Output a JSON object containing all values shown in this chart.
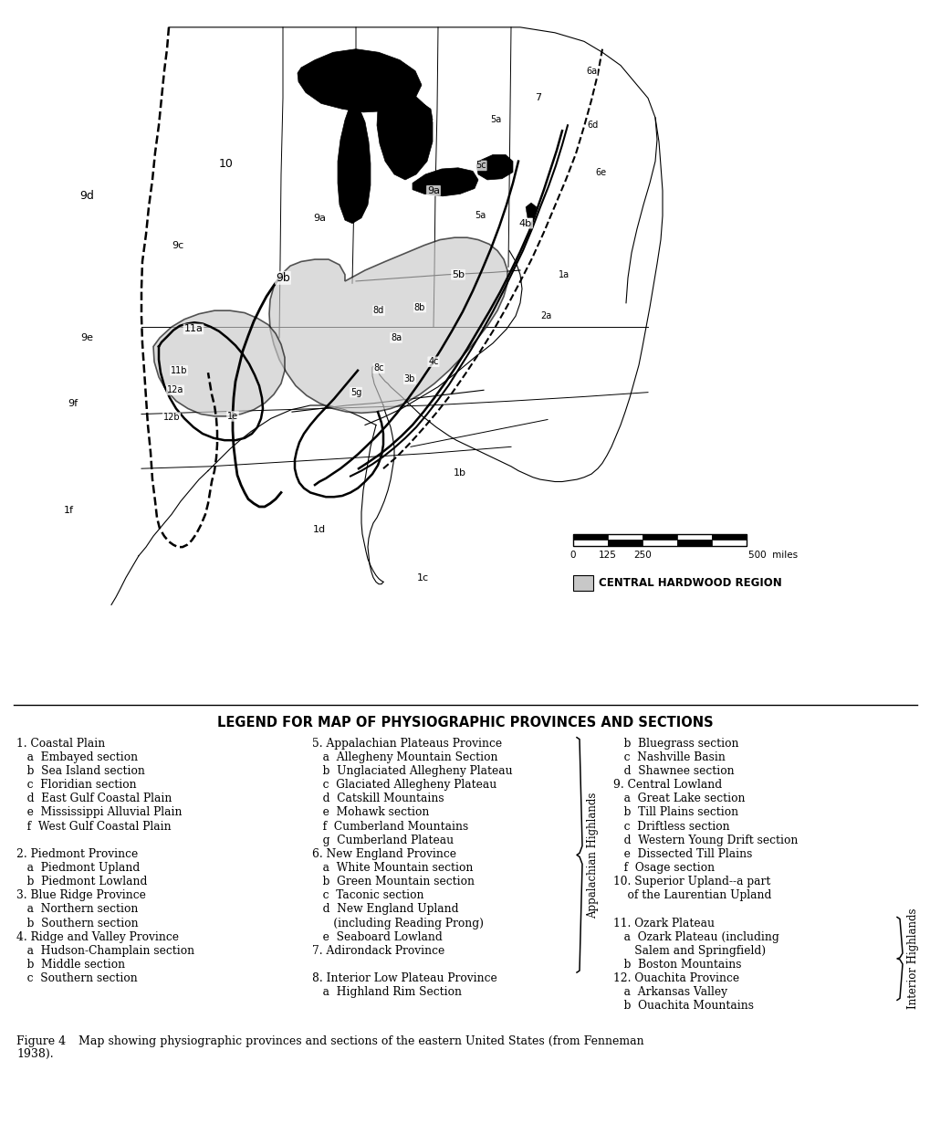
{
  "legend_title": "LEGEND FOR MAP OF PHYSIOGRAPHIC PROVINCES AND SECTIONS",
  "hardwood_region_label": "CENTRAL HARDWOOD REGION",
  "caption_label": "Figure 4",
  "caption_text": "    Map showing physiographic provinces and sections of the eastern United States (from Fenneman",
  "caption_text2": "1938).",
  "col1": [
    [
      "1. Coastal Plain",
      false
    ],
    [
      "   a  Embayed section",
      false
    ],
    [
      "   b  Sea Island section",
      false
    ],
    [
      "   c  Floridian section",
      false
    ],
    [
      "   d  East Gulf Coastal Plain",
      false
    ],
    [
      "   e  Mississippi Alluvial Plain",
      false
    ],
    [
      "   f  West Gulf Coastal Plain",
      false
    ],
    [
      "",
      false
    ],
    [
      "2. Piedmont Province",
      false
    ],
    [
      "   a  Piedmont Upland",
      false
    ],
    [
      "   b  Piedmont Lowland",
      false
    ],
    [
      "3. Blue Ridge Province",
      false
    ],
    [
      "   a  Northern section",
      false
    ],
    [
      "   b  Southern section",
      false
    ],
    [
      "4. Ridge and Valley Province",
      false
    ],
    [
      "   a  Hudson-Champlain section",
      false
    ],
    [
      "   b  Middle section",
      false
    ],
    [
      "   c  Southern section",
      false
    ]
  ],
  "col2": [
    [
      "5. Appalachian Plateaus Province",
      false
    ],
    [
      "   a  Allegheny Mountain Section",
      false
    ],
    [
      "   b  Unglaciated Allegheny Plateau",
      false
    ],
    [
      "   c  Glaciated Allegheny Plateau",
      false
    ],
    [
      "   d  Catskill Mountains",
      false
    ],
    [
      "   e  Mohawk section",
      false
    ],
    [
      "   f  Cumberland Mountains",
      false
    ],
    [
      "   g  Cumberland Plateau",
      false
    ],
    [
      "6. New England Province",
      false
    ],
    [
      "   a  White Mountain section",
      false
    ],
    [
      "   b  Green Mountain section",
      false
    ],
    [
      "   c  Taconic section",
      false
    ],
    [
      "   d  New England Upland",
      false
    ],
    [
      "      (including Reading Prong)",
      false
    ],
    [
      "   e  Seaboard Lowland",
      false
    ],
    [
      "7. Adirondack Province",
      false
    ],
    [
      "",
      false
    ],
    [
      "8. Interior Low Plateau Province",
      false
    ],
    [
      "   a  Highland Rim Section",
      false
    ]
  ],
  "col2_brace": "Appalachian Highlands",
  "col3": [
    [
      "   b  Bluegrass section",
      false
    ],
    [
      "   c  Nashville Basin",
      false
    ],
    [
      "   d  Shawnee section",
      false
    ],
    [
      "9. Central Lowland",
      false
    ],
    [
      "   a  Great Lake section",
      false
    ],
    [
      "   b  Till Plains section",
      false
    ],
    [
      "   c  Driftless section",
      false
    ],
    [
      "   d  Western Young Drift section",
      false
    ],
    [
      "   e  Dissected Till Plains",
      false
    ],
    [
      "   f  Osage section",
      false
    ],
    [
      "10. Superior Upland--a part",
      false
    ],
    [
      "    of the Laurentian Upland",
      false
    ],
    [
      "",
      false
    ],
    [
      "11. Ozark Plateau",
      false
    ],
    [
      "   a  Ozark Plateau (including",
      false
    ],
    [
      "      Salem and Springfield)",
      false
    ],
    [
      "   b  Boston Mountains",
      false
    ],
    [
      "12. Ouachita Province",
      false
    ],
    [
      "   a  Arkansas Valley",
      false
    ],
    [
      "   b  Ouachita Mountains",
      false
    ]
  ],
  "col3_brace": "Interior Highlands",
  "background_color": "#ffffff"
}
